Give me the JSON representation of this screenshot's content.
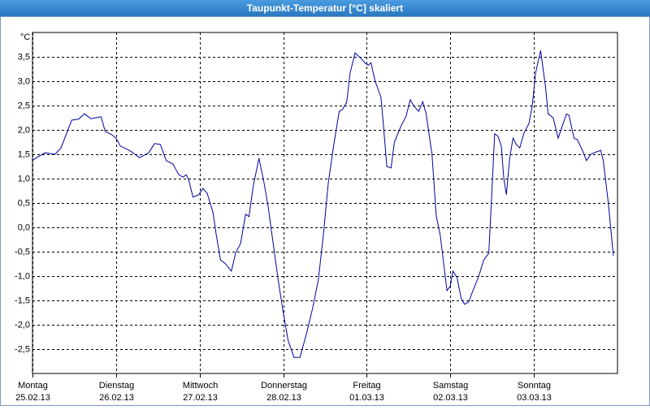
{
  "chart_data": {
    "type": "line",
    "title": "Taupunkt-Temperatur [°C] skaliert",
    "y_unit": "°C",
    "xlim": [
      0,
      7
    ],
    "ylim": [
      -3,
      4
    ],
    "xticks": [
      0,
      1,
      2,
      3,
      4,
      5,
      6
    ],
    "xtick_labels": [
      {
        "day": "Montag",
        "date": "25.02.13"
      },
      {
        "day": "Dienstag",
        "date": "26.02.13"
      },
      {
        "day": "Mittwoch",
        "date": "27.02.13"
      },
      {
        "day": "Donnerstag",
        "date": "28.02.13"
      },
      {
        "day": "Freitag",
        "date": "01.03.13"
      },
      {
        "day": "Samstag",
        "date": "02.03.13"
      },
      {
        "day": "Sonntag",
        "date": "03.03.13"
      }
    ],
    "yticks": [
      {
        "value": -2.5,
        "label": "-2,5"
      },
      {
        "value": -2,
        "label": "-2,0"
      },
      {
        "value": -1.5,
        "label": "-1,5"
      },
      {
        "value": -1,
        "label": "-1,0"
      },
      {
        "value": -0.5,
        "label": "-0,5"
      },
      {
        "value": 0,
        "label": "0,0"
      },
      {
        "value": 0.5,
        "label": "0,5"
      },
      {
        "value": 1,
        "label": "1,0"
      },
      {
        "value": 1.5,
        "label": "1,5"
      },
      {
        "value": 2,
        "label": "2,0"
      },
      {
        "value": 2.5,
        "label": "2,5"
      },
      {
        "value": 3,
        "label": "3,0"
      },
      {
        "value": 3.5,
        "label": "3,5"
      }
    ],
    "grid": true,
    "series": [
      {
        "color": "#0000a0",
        "x": [
          0,
          0.15,
          0.27,
          0.34,
          0.47,
          0.55,
          0.62,
          0.7,
          0.76,
          0.82,
          0.87,
          0.95,
          1.0,
          1.05,
          1.17,
          1.28,
          1.39,
          1.46,
          1.53,
          1.6,
          1.68,
          1.75,
          1.8,
          1.84,
          1.87,
          1.92,
          1.99,
          2.04,
          2.09,
          2.16,
          2.2,
          2.25,
          2.31,
          2.38,
          2.43,
          2.49,
          2.55,
          2.59,
          2.64,
          2.71,
          2.77,
          2.82,
          2.88,
          2.94,
          3.0,
          3.06,
          3.13,
          3.2,
          3.28,
          3.35,
          3.42,
          3.48,
          3.54,
          3.61,
          3.67,
          3.71,
          3.76,
          3.8,
          3.86,
          3.93,
          3.98,
          4.02,
          4.05,
          4.1,
          4.17,
          4.2,
          4.24,
          4.29,
          4.33,
          4.41,
          4.47,
          4.52,
          4.56,
          4.62,
          4.67,
          4.71,
          4.78,
          4.83,
          4.88,
          4.92,
          4.96,
          5.0,
          5.03,
          5.08,
          5.13,
          5.17,
          5.22,
          5.27,
          5.34,
          5.4,
          5.46,
          5.5,
          5.53,
          5.57,
          5.61,
          5.64,
          5.67,
          5.71,
          5.75,
          5.79,
          5.83,
          5.88,
          5.94,
          5.98,
          6.02,
          6.08,
          6.14,
          6.17,
          6.23,
          6.29,
          6.35,
          6.39,
          6.42,
          6.48,
          6.52,
          6.58,
          6.63,
          6.68,
          6.75,
          6.8,
          6.83,
          6.89,
          6.95
        ],
        "values": [
          1.38,
          1.53,
          1.5,
          1.63,
          2.2,
          2.22,
          2.33,
          2.23,
          2.25,
          2.27,
          1.97,
          1.9,
          1.83,
          1.67,
          1.57,
          1.43,
          1.53,
          1.72,
          1.7,
          1.37,
          1.3,
          1.08,
          1.03,
          1.08,
          0.97,
          0.62,
          0.67,
          0.8,
          0.7,
          0.3,
          -0.17,
          -0.67,
          -0.75,
          -0.9,
          -0.53,
          -0.33,
          0.27,
          0.22,
          0.83,
          1.42,
          0.92,
          0.42,
          -0.33,
          -1.08,
          -1.75,
          -2.33,
          -2.67,
          -2.67,
          -2.17,
          -1.67,
          -1.08,
          -0.17,
          0.92,
          1.75,
          2.38,
          2.42,
          2.57,
          3.17,
          3.58,
          3.47,
          3.37,
          3.33,
          3.38,
          3.0,
          2.67,
          2.08,
          1.25,
          1.22,
          1.75,
          2.08,
          2.28,
          2.62,
          2.5,
          2.38,
          2.58,
          2.33,
          1.5,
          0.25,
          -0.17,
          -0.75,
          -1.3,
          -1.2,
          -0.9,
          -1.03,
          -1.47,
          -1.58,
          -1.53,
          -1.3,
          -1.0,
          -0.67,
          -0.53,
          0.83,
          1.92,
          1.87,
          1.67,
          1.0,
          0.67,
          1.42,
          1.83,
          1.7,
          1.63,
          1.93,
          2.13,
          2.5,
          3.17,
          3.63,
          2.87,
          2.33,
          2.25,
          1.83,
          2.13,
          2.33,
          2.3,
          1.83,
          1.8,
          1.58,
          1.37,
          1.5,
          1.55,
          1.58,
          1.37,
          0.5,
          -0.58
        ]
      }
    ]
  }
}
